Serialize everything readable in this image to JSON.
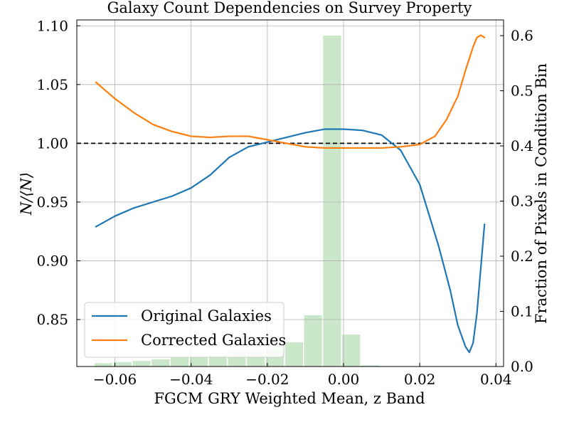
{
  "chart_data": {
    "type": "line",
    "title": "Galaxy Count Dependencies on Survey Property",
    "xlabel": "FGCM GRY Weighted Mean, z Band",
    "ylabel": "N/⟨N⟩",
    "y2label": "Fraction of Pixels in Condition Bin",
    "xlim": [
      -0.07,
      0.042
    ],
    "ylim": [
      0.81,
      1.105
    ],
    "y2lim": [
      0.0,
      0.6285
    ],
    "x_ticks": [
      -0.06,
      -0.04,
      -0.02,
      0.0,
      0.02,
      0.04
    ],
    "x_tick_labels": [
      "−0.06",
      "−0.04",
      "−0.02",
      "0.00",
      "0.02",
      "0.04"
    ],
    "y_ticks": [
      0.85,
      0.9,
      0.95,
      1.0,
      1.05,
      1.1
    ],
    "y_tick_labels": [
      "0.85",
      "0.90",
      "0.95",
      "1.00",
      "1.05",
      "1.10"
    ],
    "y2_ticks": [
      0.0,
      0.1,
      0.2,
      0.3,
      0.4,
      0.5,
      0.6
    ],
    "y2_tick_labels": [
      "0.0",
      "0.1",
      "0.2",
      "0.3",
      "0.4",
      "0.5",
      "0.6"
    ],
    "grid": true,
    "legend_position": "bottom-left",
    "reference_line": {
      "y": 1.0,
      "style": "dashed",
      "color": "#000000"
    },
    "series": [
      {
        "name": "Original Galaxies",
        "color": "#1f77b4",
        "x": [
          -0.065,
          -0.06,
          -0.055,
          -0.05,
          -0.045,
          -0.04,
          -0.035,
          -0.03,
          -0.025,
          -0.02,
          -0.015,
          -0.01,
          -0.005,
          0.0,
          0.005,
          0.01,
          0.015,
          0.02,
          0.025,
          0.028,
          0.03,
          0.032,
          0.033,
          0.034,
          0.035,
          0.036,
          0.037
        ],
        "y": [
          0.929,
          0.938,
          0.945,
          0.95,
          0.955,
          0.962,
          0.973,
          0.988,
          0.997,
          1.001,
          1.005,
          1.009,
          1.012,
          1.012,
          1.011,
          1.007,
          0.994,
          0.965,
          0.912,
          0.875,
          0.845,
          0.827,
          0.822,
          0.83,
          0.855,
          0.893,
          0.931
        ]
      },
      {
        "name": "Corrected Galaxies",
        "color": "#ff7f0e",
        "x": [
          -0.065,
          -0.06,
          -0.055,
          -0.05,
          -0.045,
          -0.04,
          -0.035,
          -0.03,
          -0.025,
          -0.02,
          -0.015,
          -0.01,
          -0.005,
          0.0,
          0.005,
          0.01,
          0.015,
          0.02,
          0.024,
          0.027,
          0.03,
          0.032,
          0.034,
          0.035,
          0.036,
          0.037
        ],
        "y": [
          1.052,
          1.038,
          1.026,
          1.016,
          1.01,
          1.006,
          1.005,
          1.006,
          1.006,
          1.003,
          1.0,
          0.997,
          0.996,
          0.996,
          0.996,
          0.996,
          0.997,
          0.999,
          1.006,
          1.02,
          1.04,
          1.062,
          1.082,
          1.09,
          1.092,
          1.09
        ]
      }
    ],
    "histogram": {
      "color": "#2ca02c",
      "alpha": 0.25,
      "axis": "right",
      "bin_edges": [
        -0.0655,
        -0.0605,
        -0.0555,
        -0.0505,
        -0.0455,
        -0.0405,
        -0.0355,
        -0.0305,
        -0.0255,
        -0.0205,
        -0.0155,
        -0.0105,
        -0.0055,
        -0.0005,
        0.0045,
        0.0095,
        0.0145
      ],
      "values": [
        0.006,
        0.008,
        0.01,
        0.013,
        0.016,
        0.018,
        0.02,
        0.026,
        0.029,
        0.033,
        0.044,
        0.093,
        0.6,
        0.058,
        0.002,
        0.0
      ]
    }
  }
}
